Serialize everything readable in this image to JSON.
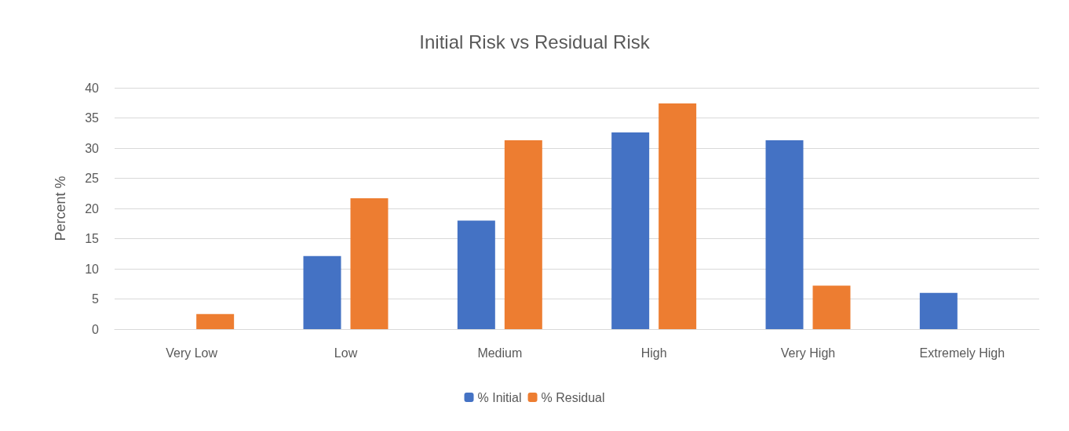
{
  "chart_data": {
    "type": "bar",
    "title": "Initial Risk vs Residual Risk",
    "ylabel": "Percent %",
    "categories": [
      "Very Low",
      "Low",
      "Medium",
      "High",
      "Very High",
      "Extremely High"
    ],
    "series": [
      {
        "name": "% Initial",
        "color": "#4472c4",
        "values": [
          0,
          12.1,
          18.0,
          32.6,
          31.3,
          6.0
        ]
      },
      {
        "name": "% Residual",
        "color": "#ed7d31",
        "values": [
          2.5,
          21.7,
          31.3,
          37.4,
          7.2,
          0
        ]
      }
    ],
    "ylim": [
      0,
      40
    ],
    "yticks": [
      0,
      5,
      10,
      15,
      20,
      25,
      30,
      35,
      40
    ],
    "grid": "y",
    "legend": "bottom"
  }
}
